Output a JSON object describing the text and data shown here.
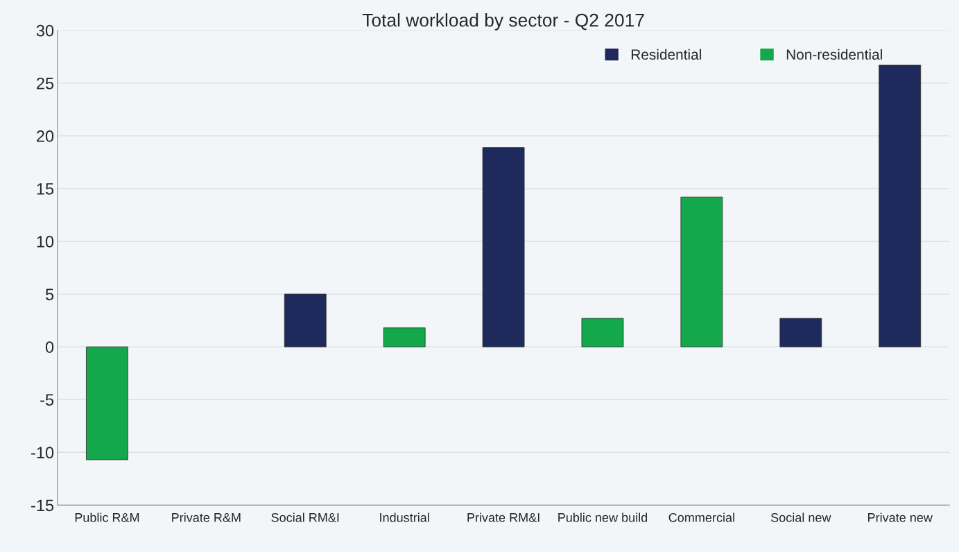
{
  "chart_data": {
    "type": "bar",
    "title": "Total workload by sector - Q2 2017",
    "categories": [
      "Public R&M",
      "Private R&M",
      "Social RM&I",
      "Industrial",
      "Private RM&I",
      "Public new build",
      "Commercial",
      "Social new",
      "Private new"
    ],
    "series": [
      {
        "name": "Residential",
        "color": "#1f2a5c",
        "values": [
          null,
          null,
          5.0,
          null,
          18.9,
          null,
          null,
          2.7,
          26.7
        ]
      },
      {
        "name": "Non-residential",
        "color": "#12a84b",
        "values": [
          -10.7,
          null,
          null,
          1.8,
          null,
          2.7,
          14.2,
          null,
          null
        ]
      }
    ],
    "ylim": [
      -15,
      30
    ],
    "yticks": [
      -15,
      -10,
      -5,
      0,
      5,
      10,
      15,
      20,
      25,
      30
    ],
    "grid": "y",
    "legend": "top right"
  }
}
